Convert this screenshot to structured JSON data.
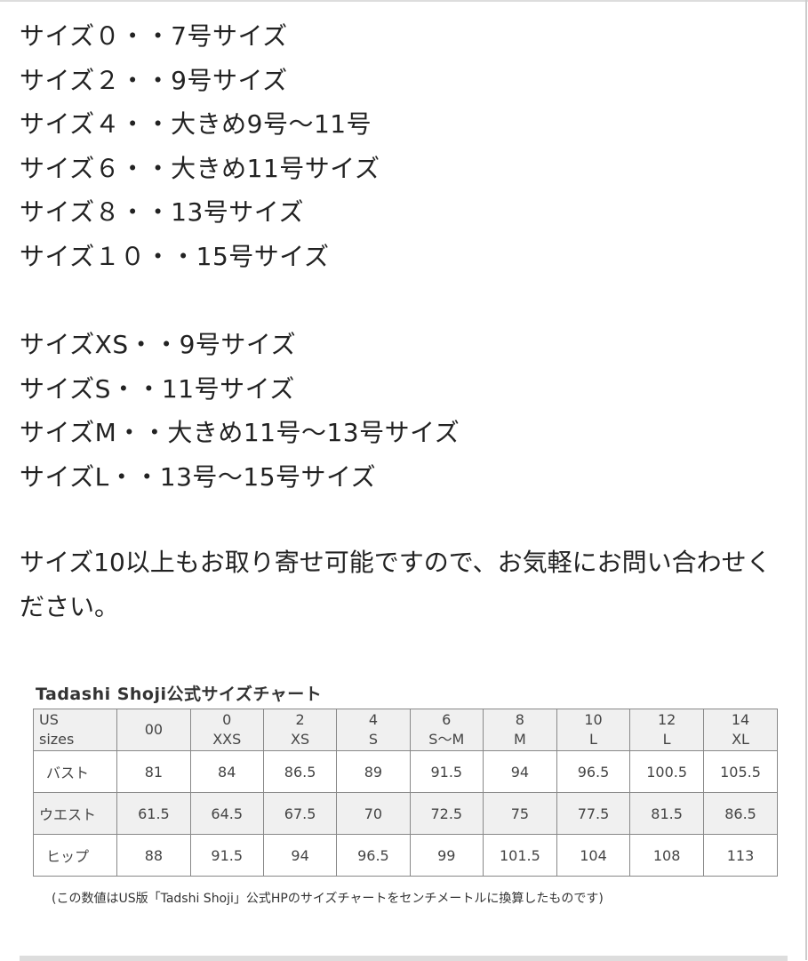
{
  "size_lines_group1": [
    "サイズ０・・7号サイズ",
    "サイズ２・・9号サイズ",
    "サイズ４・・大きめ9号〜11号",
    "サイズ６・・大きめ11号サイズ",
    "サイズ８・・13号サイズ",
    "サイズ１０・・15号サイズ"
  ],
  "size_lines_group2": [
    "サイズXS・・9号サイズ",
    "サイズS・・11号サイズ",
    "サイズM・・大きめ11号〜13号サイズ",
    "サイズL・・13号〜15号サイズ"
  ],
  "note": "サイズ10以上もお取り寄せ可能ですので、お気軽にお問い合わせください。",
  "chart": {
    "title": "Tadashi Shoji公式サイズチャート",
    "header_label": [
      "US",
      "sizes"
    ],
    "columns": [
      [
        "00",
        ""
      ],
      [
        "0",
        "XXS"
      ],
      [
        "2",
        "XS"
      ],
      [
        "4",
        "S"
      ],
      [
        "6",
        "S〜M"
      ],
      [
        "8",
        "M"
      ],
      [
        "10",
        "L"
      ],
      [
        "12",
        "L"
      ],
      [
        "14",
        "XL"
      ]
    ],
    "rows": [
      {
        "label": "バスト",
        "values": [
          "81",
          "84",
          "86.5",
          "89",
          "91.5",
          "94",
          "96.5",
          "100.5",
          "105.5"
        ]
      },
      {
        "label": "ウエスト",
        "values": [
          "61.5",
          "64.5",
          "67.5",
          "70",
          "72.5",
          "75",
          "77.5",
          "81.5",
          "86.5"
        ]
      },
      {
        "label": "ヒップ",
        "values": [
          "88",
          "91.5",
          "94",
          "96.5",
          "99",
          "101.5",
          "104",
          "108",
          "113"
        ]
      }
    ],
    "footnote": "(この数値はUS版「Tadshi Shoji」公式HPのサイズチャートをセンチメートルに換算したものです)"
  }
}
